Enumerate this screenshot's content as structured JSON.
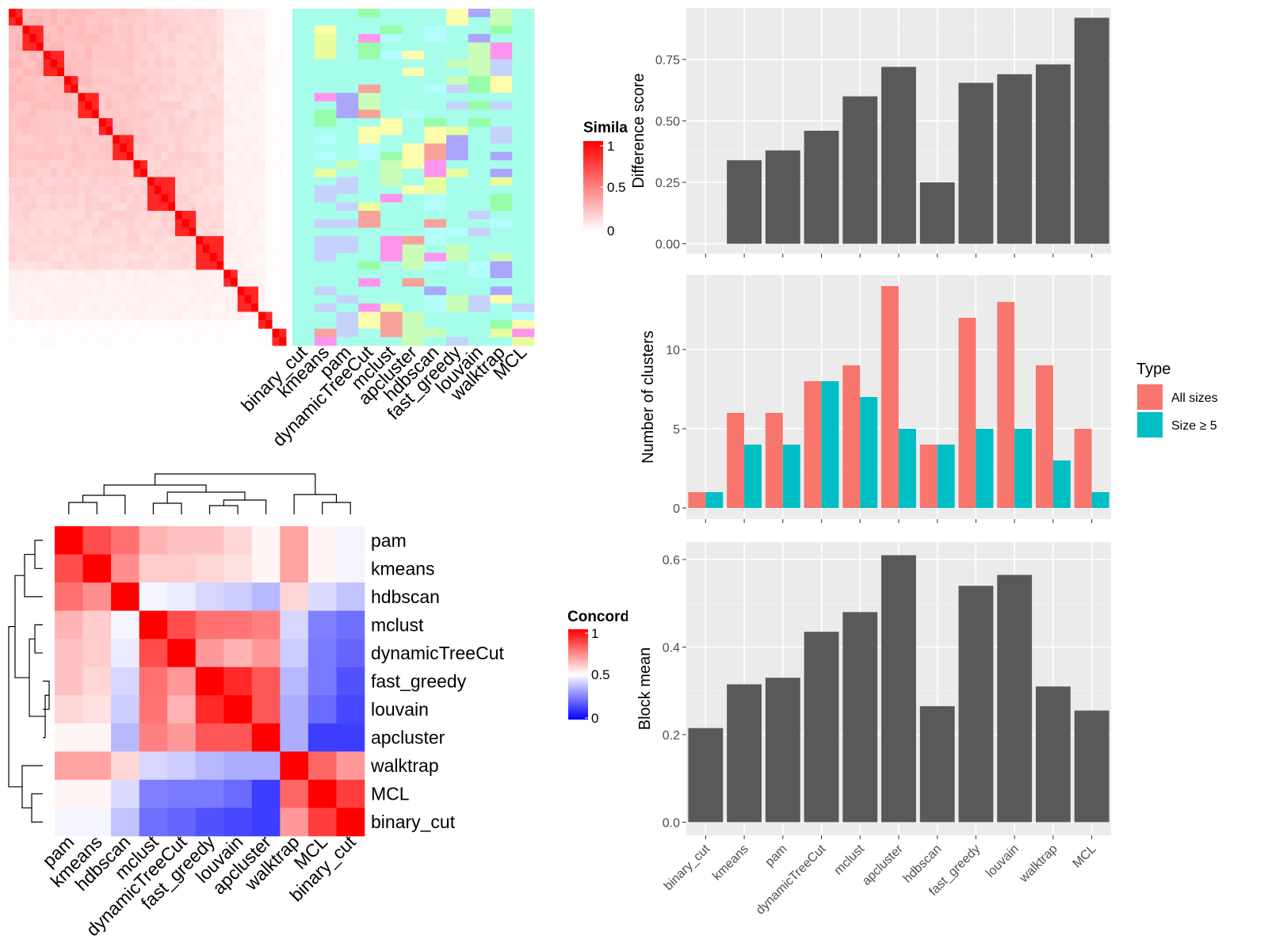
{
  "chart_data": [
    {
      "type": "heatmap",
      "panel": "similarity",
      "legend_title": "Similarity",
      "legend_ticks": [
        "0",
        "0.5",
        "1"
      ],
      "column_labels": [
        "binary_cut",
        "kmeans",
        "pam",
        "dynamicTreeCut",
        "mclust",
        "apcluster",
        "hdbscan",
        "fast_greedy",
        "louvain",
        "walktrap",
        "MCL"
      ],
      "n_terms": 40,
      "block_sizes": [
        2,
        3,
        3,
        2,
        3,
        2,
        3,
        2,
        4,
        3,
        4,
        2,
        3,
        2,
        2,
        2
      ],
      "palette": [
        "#a6fdea",
        "#fdfdae",
        "#97fda8",
        "#a9a6fc",
        "#fd95ee",
        "#c5d3fc",
        "#f7a29b",
        "#e8fd9d",
        "#b4fdfd",
        "#c9fdb8"
      ]
    },
    {
      "type": "heatmap",
      "panel": "concordance",
      "legend_title": "Concordance",
      "legend_ticks": [
        "0",
        "0.5",
        "1"
      ],
      "row_labels": [
        "pam",
        "kmeans",
        "hdbscan",
        "mclust",
        "dynamicTreeCut",
        "fast_greedy",
        "louvain",
        "apcluster",
        "walktrap",
        "MCL",
        "binary_cut"
      ],
      "column_labels": [
        "pam",
        "kmeans",
        "hdbscan",
        "mclust",
        "dynamicTreeCut",
        "fast_greedy",
        "louvain",
        "apcluster",
        "walktrap",
        "MCL",
        "binary_cut"
      ],
      "matrix": [
        [
          1.0,
          0.85,
          0.78,
          0.65,
          0.62,
          0.62,
          0.58,
          0.52,
          0.68,
          0.52,
          0.48
        ],
        [
          0.85,
          1.0,
          0.72,
          0.6,
          0.6,
          0.58,
          0.56,
          0.52,
          0.68,
          0.52,
          0.48
        ],
        [
          0.78,
          0.72,
          1.0,
          0.48,
          0.46,
          0.42,
          0.4,
          0.36,
          0.58,
          0.43,
          0.38
        ],
        [
          0.65,
          0.6,
          0.48,
          1.0,
          0.85,
          0.78,
          0.77,
          0.75,
          0.42,
          0.25,
          0.22
        ],
        [
          0.62,
          0.6,
          0.46,
          0.85,
          1.0,
          0.7,
          0.65,
          0.7,
          0.4,
          0.24,
          0.2
        ],
        [
          0.62,
          0.58,
          0.42,
          0.78,
          0.7,
          1.0,
          0.92,
          0.83,
          0.36,
          0.24,
          0.16
        ],
        [
          0.58,
          0.56,
          0.4,
          0.77,
          0.65,
          0.92,
          1.0,
          0.83,
          0.34,
          0.21,
          0.14
        ],
        [
          0.52,
          0.52,
          0.36,
          0.75,
          0.7,
          0.83,
          0.83,
          1.0,
          0.34,
          0.12,
          0.12
        ],
        [
          0.68,
          0.68,
          0.58,
          0.42,
          0.4,
          0.36,
          0.34,
          0.34,
          1.0,
          0.8,
          0.7
        ],
        [
          0.52,
          0.52,
          0.43,
          0.25,
          0.24,
          0.24,
          0.21,
          0.12,
          0.8,
          1.0,
          0.88
        ],
        [
          0.48,
          0.48,
          0.38,
          0.22,
          0.2,
          0.16,
          0.14,
          0.12,
          0.7,
          0.88,
          1.0
        ]
      ]
    },
    {
      "type": "bar",
      "panel": "difference",
      "categories": [
        "binary_cut",
        "kmeans",
        "pam",
        "dynamicTreeCut",
        "mclust",
        "apcluster",
        "hdbscan",
        "fast_greedy",
        "louvain",
        "walktrap",
        "MCL"
      ],
      "values": [
        0.0,
        0.34,
        0.38,
        0.46,
        0.6,
        0.72,
        0.25,
        0.655,
        0.69,
        0.73,
        0.92
      ],
      "ylabel": "Difference score",
      "ylim": [
        -0.04,
        0.96
      ],
      "yticks": [
        "0.00",
        "0.25",
        "0.50",
        "0.75"
      ],
      "ytick_values": [
        0,
        0.25,
        0.5,
        0.75
      ],
      "bar_color": "#595959"
    },
    {
      "type": "bar",
      "panel": "clusters",
      "categories": [
        "binary_cut",
        "kmeans",
        "pam",
        "dynamicTreeCut",
        "mclust",
        "apcluster",
        "hdbscan",
        "fast_greedy",
        "louvain",
        "walktrap",
        "MCL"
      ],
      "series": [
        {
          "name": "All sizes",
          "values": [
            1,
            6,
            6,
            8,
            9,
            14,
            4,
            12,
            13,
            9,
            5
          ],
          "color": "#f8766d"
        },
        {
          "name": "Size ≥ 5",
          "values": [
            1,
            4,
            4,
            8,
            7,
            5,
            4,
            5,
            5,
            3,
            1
          ],
          "color": "#00bfc4"
        }
      ],
      "ylabel": "Number of clusters",
      "ylim": [
        -0.7,
        14.7
      ],
      "yticks": [
        "0",
        "5",
        "10"
      ],
      "ytick_values": [
        0,
        5,
        10
      ],
      "legend_title": "Type",
      "legend_position": "right"
    },
    {
      "type": "bar",
      "panel": "block",
      "categories": [
        "binary_cut",
        "kmeans",
        "pam",
        "dynamicTreeCut",
        "mclust",
        "apcluster",
        "hdbscan",
        "fast_greedy",
        "louvain",
        "walktrap",
        "MCL"
      ],
      "values": [
        0.215,
        0.315,
        0.33,
        0.435,
        0.48,
        0.61,
        0.265,
        0.54,
        0.565,
        0.31,
        0.255
      ],
      "ylabel": "Block mean",
      "ylim": [
        -0.03,
        0.64
      ],
      "yticks": [
        "0.0",
        "0.2",
        "0.4",
        "0.6"
      ],
      "ytick_values": [
        0,
        0.2,
        0.4,
        0.6
      ],
      "bar_color": "#595959"
    }
  ]
}
